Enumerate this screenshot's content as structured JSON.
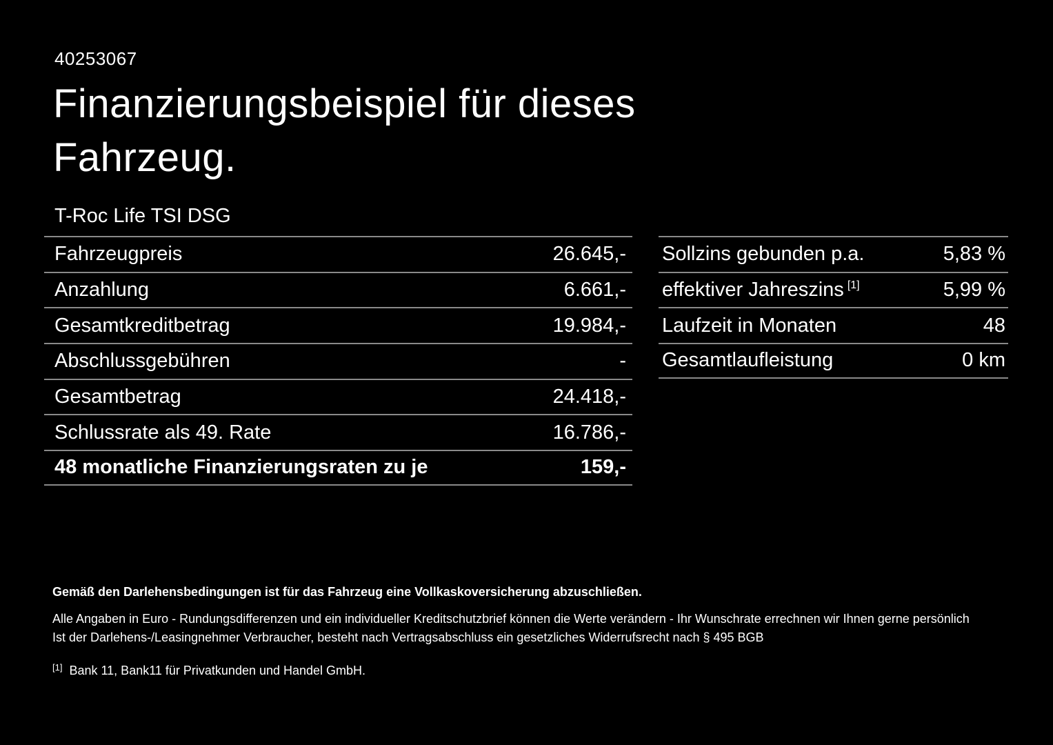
{
  "page": {
    "background_color": "#000000",
    "text_color": "#ffffff",
    "divider_color": "#8a8a8a"
  },
  "doc_id": "40253067",
  "header": {
    "title": "Finanzierungsbeispiel für dieses Fahrzeug.",
    "model": "T-Roc Life TSI DSG"
  },
  "financing_table": {
    "rows": [
      {
        "label": "Fahrzeugpreis",
        "value": "26.645,-"
      },
      {
        "label": "Anzahlung",
        "value": "6.661,-"
      },
      {
        "label": "Gesamtkreditbetrag",
        "value": "19.984,-"
      },
      {
        "label": "Abschlussgebühren",
        "value": "-"
      },
      {
        "label": "Gesamtbetrag",
        "value": "24.418,-"
      },
      {
        "label": "Schlussrate als 49. Rate",
        "value": "16.786,-"
      },
      {
        "label": "48 monatliche Finanzierungsraten zu je",
        "value": "159,-"
      }
    ]
  },
  "conditions_table": {
    "rows": [
      {
        "label": "Sollzins gebunden p.a.",
        "value": "5,83 %"
      },
      {
        "label": "effektiver Jahreszins",
        "footnote_marker": "[1]",
        "value": "5,99 %"
      },
      {
        "label": "Laufzeit in Monaten",
        "value": "48"
      },
      {
        "label": "Gesamtlaufleistung",
        "value": "0 km"
      }
    ]
  },
  "footer": {
    "bold_line": "Gemäß den Darlehensbedingungen ist für das Fahrzeug eine Vollkaskoversicherung abzuschließen.",
    "line2": "Alle Angaben in Euro - Rundungsdifferenzen und ein individueller Kreditschutzbrief können die Werte verändern - Ihr Wunschrate errechnen wir Ihnen gerne persönlich",
    "line3": "Ist der Darlehens-/Leasingnehmer Verbraucher, besteht nach Vertragsabschluss ein gesetzliches Widerrufsrecht nach § 495 BGB",
    "footnote_marker": "[1]",
    "footnote_text": "Bank 11, Bank11 für Privatkunden und Handel GmbH."
  }
}
